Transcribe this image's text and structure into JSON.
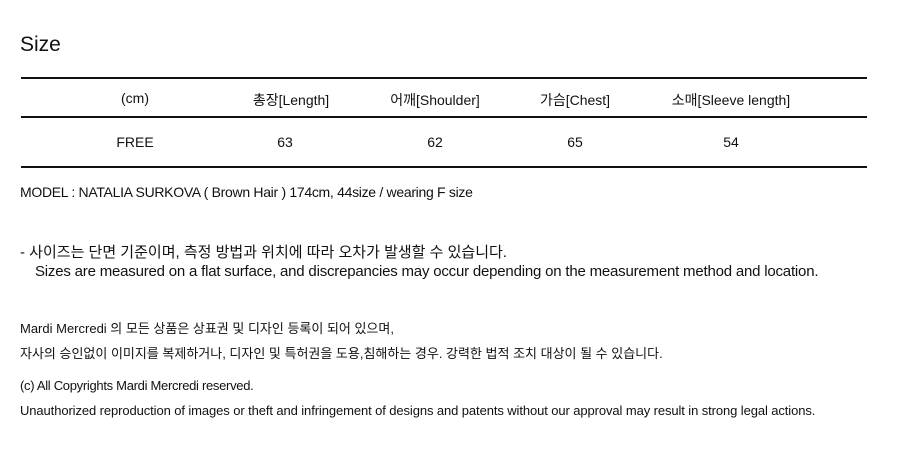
{
  "title": "Size",
  "table": {
    "headers": [
      "(cm)",
      "총장[Length]",
      "어깨[Shoulder]",
      "가슴[Chest]",
      "소매[Sleeve length]"
    ],
    "rows": [
      [
        "FREE",
        "63",
        "62",
        "65",
        "54"
      ]
    ]
  },
  "model_info": "MODEL : NATALIA SURKOVA ( Brown Hair ) 174cm, 44size / wearing F size",
  "notice": {
    "ko": "- 사이즈는 단면 기준이며, 측정 방법과 위치에 따라 오차가 발생할 수 있습니다.",
    "en": "Sizes are measured on a flat surface, and discrepancies may occur depending on the measurement method and location."
  },
  "trademark": {
    "line1": "Mardi Mercredi 의 모든 상품은 상표권 및 디자인 등록이 되어 있으며,",
    "line2": "자사의 승인없이 이미지를 복제하거나, 디자인 및 특허권을 도용,침해하는 경우. 강력한 법적 조치 대상이 될 수 있습니다."
  },
  "copyright": {
    "line1": "(c) All Copyrights Mardi Mercredi reserved.",
    "line2": "Unauthorized reproduction of images or theft and infringement of designs and patents without our approval may result in strong legal actions."
  }
}
